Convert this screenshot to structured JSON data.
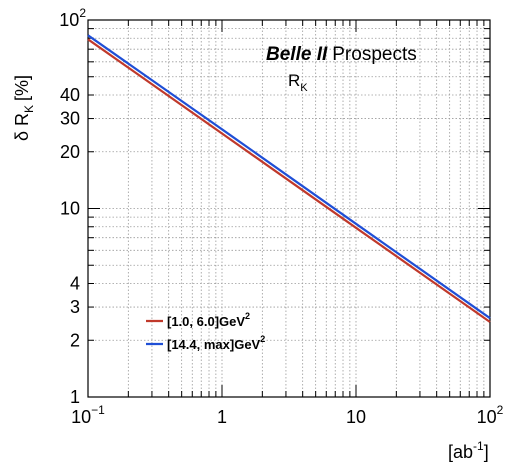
{
  "chart_data": {
    "type": "line",
    "title": "",
    "annotations": {
      "experiment_bold": "Belle II",
      "experiment_rest": "Prospects",
      "observable": "R",
      "observable_sub": "K"
    },
    "xlabel": {
      "base": "[ab",
      "sup": "-1",
      "close": "]"
    },
    "ylabel": {
      "delta": "δ R",
      "sub": "K",
      "unit": "[%]"
    },
    "xscale": "log",
    "yscale": "log",
    "xlim": [
      0.1,
      100
    ],
    "ylim": [
      1,
      100
    ],
    "x_ticks": [
      {
        "value": 0.1,
        "base": "10",
        "exp": "−1"
      },
      {
        "value": 1,
        "base": "1",
        "exp": ""
      },
      {
        "value": 10,
        "base": "10",
        "exp": ""
      },
      {
        "value": 100,
        "base": "10",
        "exp": "2"
      }
    ],
    "y_ticks": [
      {
        "value": 1,
        "base": "1",
        "exp": ""
      },
      {
        "value": 2,
        "base": "2",
        "exp": ""
      },
      {
        "value": 3,
        "base": "3",
        "exp": ""
      },
      {
        "value": 4,
        "base": "4",
        "exp": ""
      },
      {
        "value": 10,
        "base": "10",
        "exp": ""
      },
      {
        "value": 20,
        "base": "20",
        "exp": ""
      },
      {
        "value": 30,
        "base": "30",
        "exp": ""
      },
      {
        "value": 40,
        "base": "40",
        "exp": ""
      },
      {
        "value": 100,
        "base": "10",
        "exp": "2"
      }
    ],
    "grid": true,
    "legend_position": "bottom-left",
    "series": [
      {
        "name": "[1.0, 6.0]GeV",
        "name_sup": "2",
        "color": "#c0392b",
        "x": [
          0.1,
          1,
          10,
          100
        ],
        "y": [
          79,
          25,
          7.9,
          2.5
        ]
      },
      {
        "name": "[14.4, max]GeV",
        "name_sup": "2",
        "color": "#1f4fd6",
        "x": [
          0.1,
          1,
          10,
          100
        ],
        "y": [
          83,
          26.3,
          8.3,
          2.62
        ]
      }
    ]
  }
}
